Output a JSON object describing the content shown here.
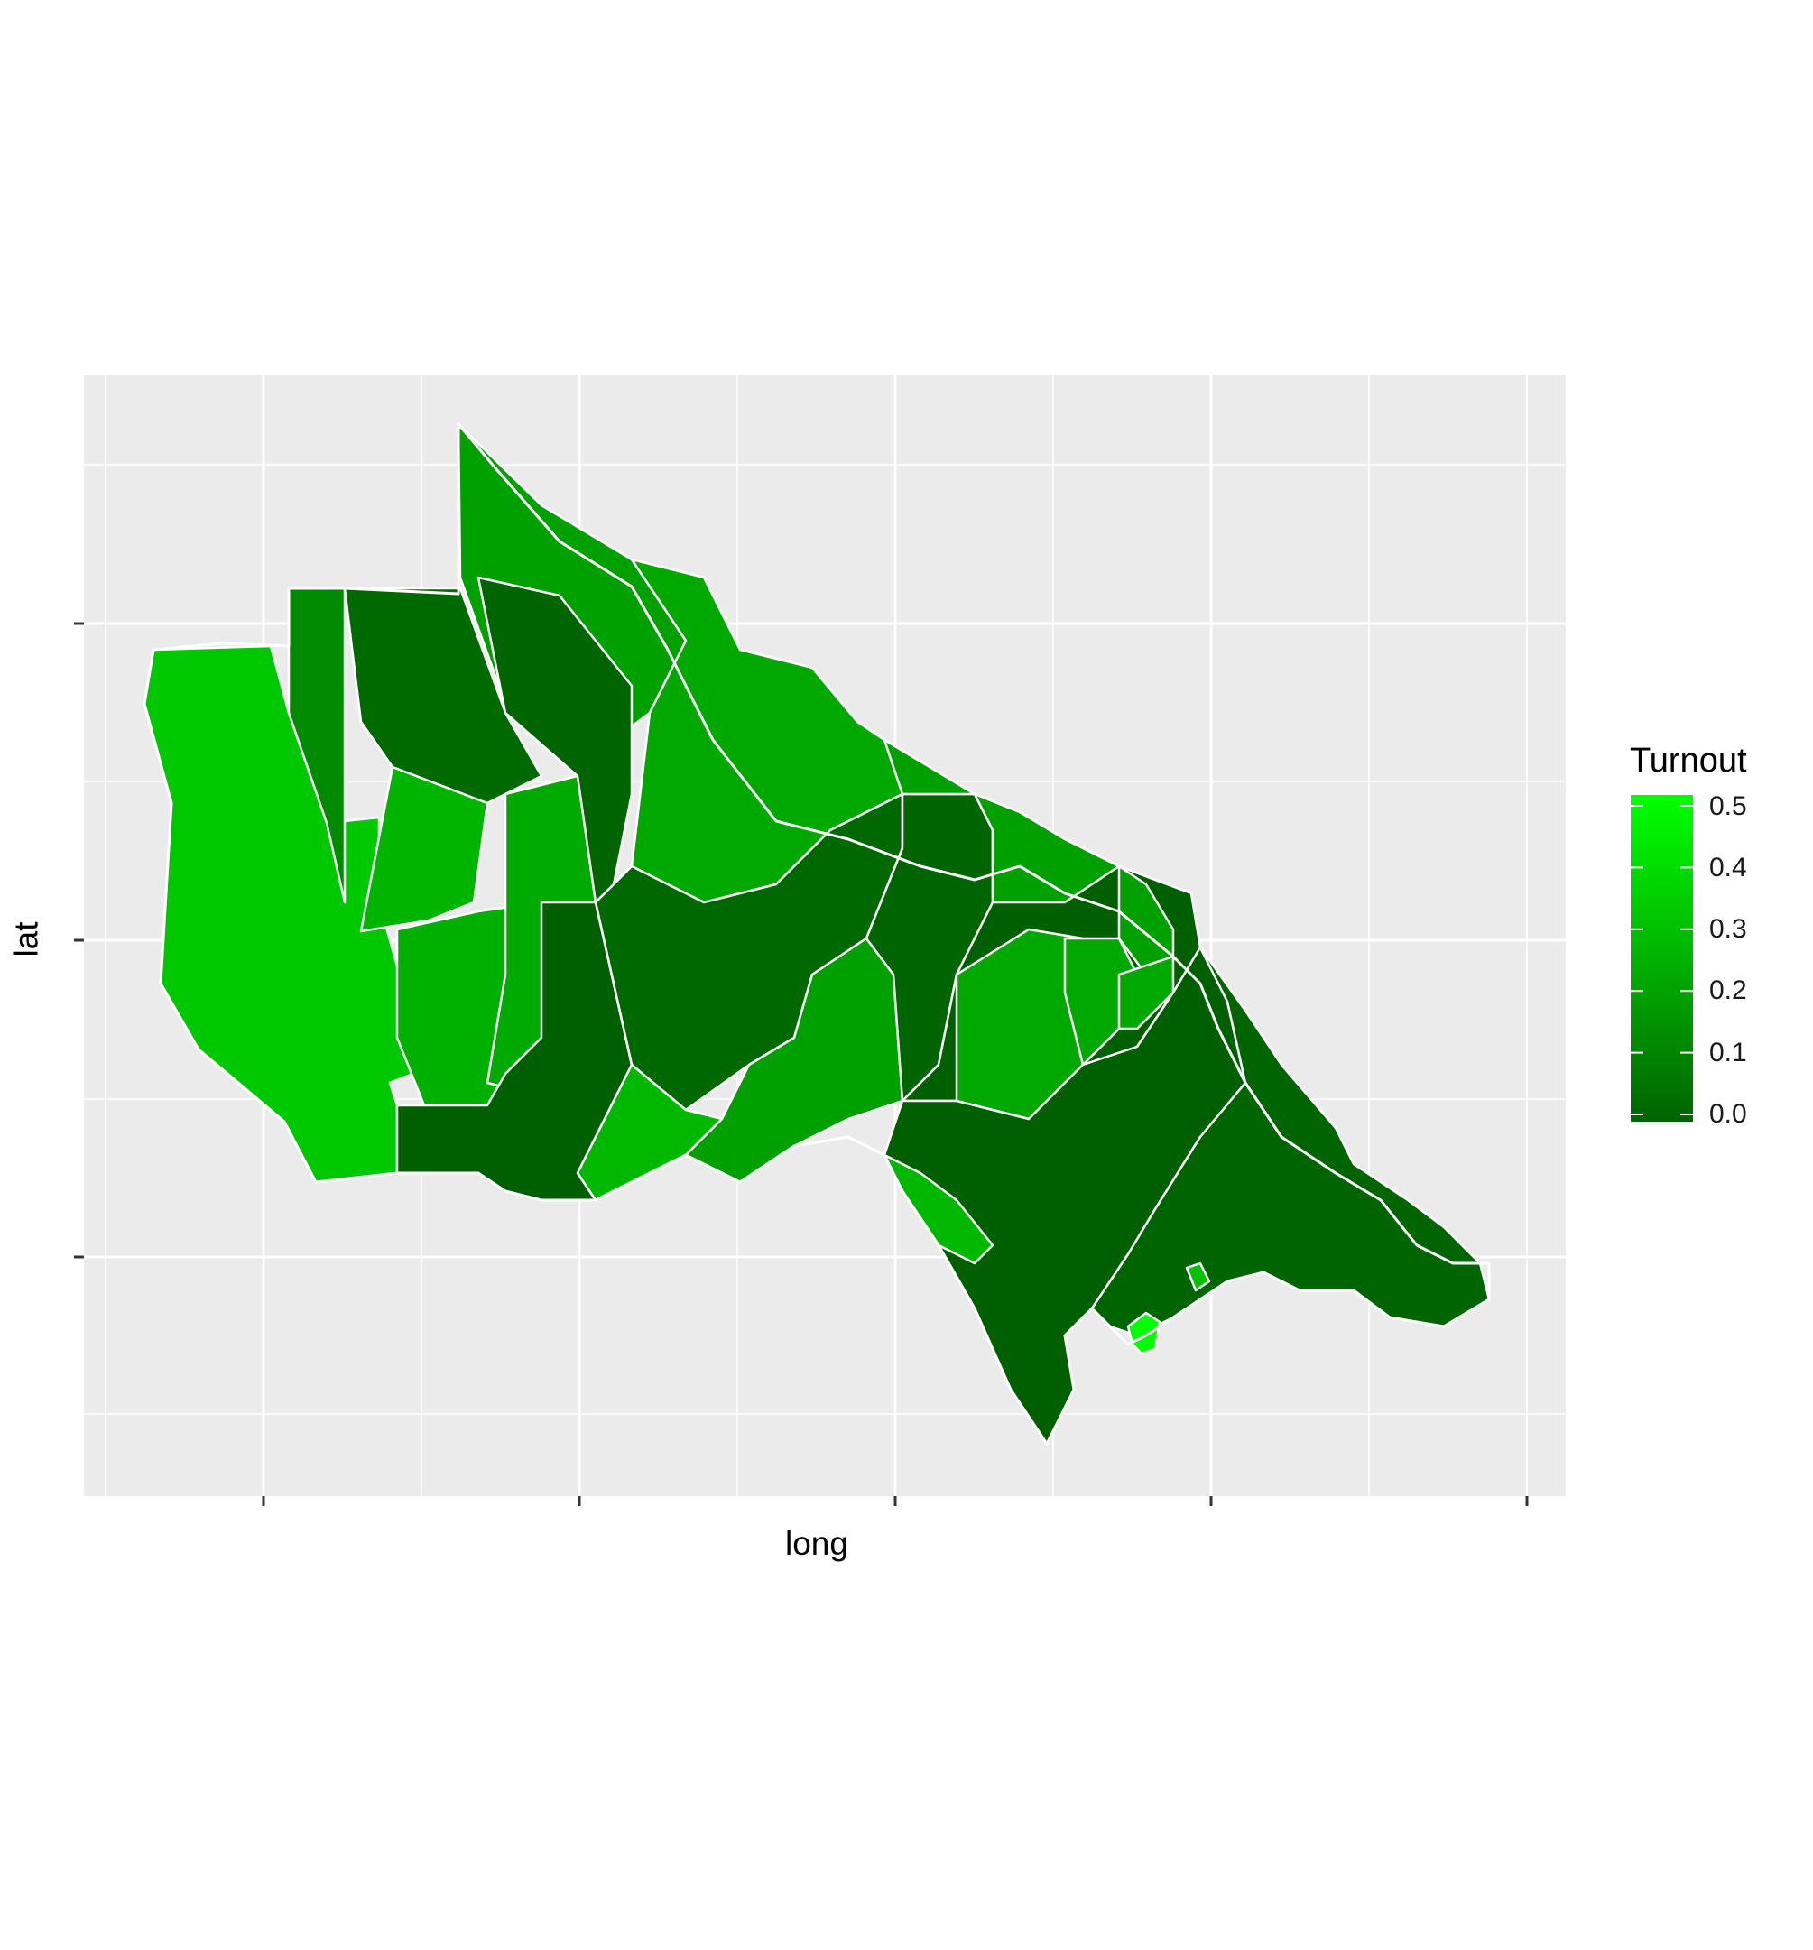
{
  "chart": {
    "xlabel": "long",
    "ylabel": "lat",
    "x_tick_labels": [
      "",
      "",
      "",
      "",
      ""
    ],
    "y_tick_labels": [
      "",
      "",
      ""
    ],
    "panel_background": "#ebebeb",
    "grid_color": "#ffffff",
    "region_border_color": "#ffffff"
  },
  "legend": {
    "title": "Turnout",
    "placement": "right",
    "ticks": [
      "0.0",
      "0.1",
      "0.2",
      "0.3",
      "0.4",
      "0.5"
    ],
    "gradient_low": "#006400",
    "gradient_high": "#00ff00"
  },
  "chart_data": {
    "type": "choropleth",
    "fill_variable": "Turnout",
    "fill_range": [
      0.0,
      0.5
    ],
    "xlabel": "long",
    "ylabel": "lat",
    "grid": true,
    "legend_position": "right",
    "summary": "Precinct-level turnout; western and northern precincts mostly 0.3-0.4, central and south-eastern precincts mostly 0.0-0.1, a few coastal precincts near 0.5"
  }
}
